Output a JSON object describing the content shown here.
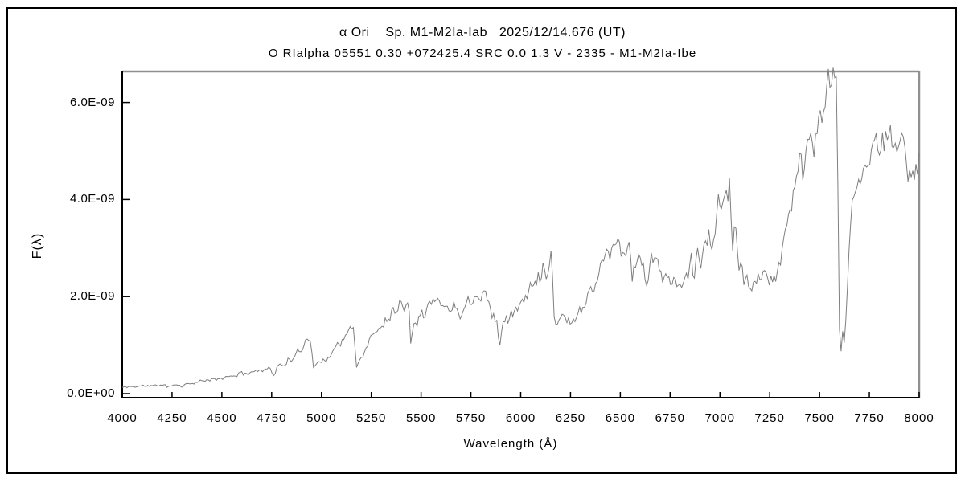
{
  "window": {
    "background": "#ffffff",
    "border_color": "#000000",
    "text_color": "#000000"
  },
  "chart_data": {
    "type": "line",
    "title": "α Ori    Sp. M1-M2Ia-Iab   2025/12/14.676 (UT)",
    "subtitle": "O RIalpha 05551 0.30 +072425.4 SRC 0.0 1.3 V - 2335 - M1-M2Ia-Ibe",
    "xlabel": "Wavelength (Å)",
    "ylabel": "F(λ)",
    "xlim": [
      4000,
      8000
    ],
    "ylim_e9": [
      -0.1,
      6.65
    ],
    "grid": false,
    "legend": "none",
    "x_ticks": [
      4000,
      4250,
      4500,
      4750,
      5000,
      5250,
      5500,
      5750,
      6000,
      6250,
      6500,
      6750,
      7000,
      7250,
      7500,
      7750,
      8000
    ],
    "y_ticks": [
      {
        "value_e9": 0.0,
        "label": "0.0E+00"
      },
      {
        "value_e9": 2.0,
        "label": "2.0E-09"
      },
      {
        "value_e9": 4.0,
        "label": "4.0E-09"
      },
      {
        "value_e9": 6.0,
        "label": "6.0E-09"
      }
    ],
    "colors": {
      "trace": "#7f7f7f",
      "axis": "#000000",
      "frame": "#909090"
    },
    "series": [
      {
        "name": "alpha-ori-optical-spectrum",
        "flux_scale": "1E-09",
        "anchors_e9": [
          [
            4000,
            0.13
          ],
          [
            4060,
            0.15
          ],
          [
            4120,
            0.16
          ],
          [
            4180,
            0.17
          ],
          [
            4220,
            0.19
          ],
          [
            4227,
            0.09
          ],
          [
            4235,
            0.16
          ],
          [
            4280,
            0.19
          ],
          [
            4305,
            0.13
          ],
          [
            4320,
            0.2
          ],
          [
            4380,
            0.24
          ],
          [
            4440,
            0.28
          ],
          [
            4500,
            0.32
          ],
          [
            4560,
            0.37
          ],
          [
            4620,
            0.43
          ],
          [
            4680,
            0.48
          ],
          [
            4740,
            0.52
          ],
          [
            4762,
            0.4
          ],
          [
            4780,
            0.55
          ],
          [
            4820,
            0.62
          ],
          [
            4860,
            0.72
          ],
          [
            4900,
            0.95
          ],
          [
            4930,
            1.1
          ],
          [
            4948,
            1.15
          ],
          [
            4957,
            0.56
          ],
          [
            4980,
            0.62
          ],
          [
            5020,
            0.72
          ],
          [
            5060,
            0.88
          ],
          [
            5110,
            1.12
          ],
          [
            5150,
            1.32
          ],
          [
            5164,
            1.45
          ],
          [
            5172,
            0.52
          ],
          [
            5185,
            0.62
          ],
          [
            5220,
            0.92
          ],
          [
            5260,
            1.18
          ],
          [
            5300,
            1.42
          ],
          [
            5340,
            1.65
          ],
          [
            5380,
            1.75
          ],
          [
            5420,
            1.85
          ],
          [
            5438,
            2.0
          ],
          [
            5448,
            1.06
          ],
          [
            5460,
            1.5
          ],
          [
            5500,
            1.68
          ],
          [
            5540,
            1.82
          ],
          [
            5580,
            1.9
          ],
          [
            5620,
            1.8
          ],
          [
            5660,
            1.72
          ],
          [
            5700,
            1.76
          ],
          [
            5750,
            1.9
          ],
          [
            5790,
            2.2
          ],
          [
            5810,
            2.1
          ],
          [
            5840,
            1.8
          ],
          [
            5860,
            1.62
          ],
          [
            5885,
            1.45
          ],
          [
            5895,
            1.03
          ],
          [
            5910,
            1.4
          ],
          [
            5940,
            1.55
          ],
          [
            5970,
            1.68
          ],
          [
            6000,
            1.85
          ],
          [
            6040,
            2.15
          ],
          [
            6080,
            2.45
          ],
          [
            6120,
            2.62
          ],
          [
            6150,
            2.72
          ],
          [
            6158,
            2.6
          ],
          [
            6166,
            1.58
          ],
          [
            6190,
            1.55
          ],
          [
            6220,
            1.6
          ],
          [
            6250,
            1.42
          ],
          [
            6280,
            1.62
          ],
          [
            6310,
            1.8
          ],
          [
            6340,
            2.1
          ],
          [
            6370,
            2.3
          ],
          [
            6400,
            2.55
          ],
          [
            6430,
            2.8
          ],
          [
            6460,
            3.0
          ],
          [
            6490,
            3.1
          ],
          [
            6520,
            3.05
          ],
          [
            6555,
            2.95
          ],
          [
            6563,
            2.12
          ],
          [
            6572,
            2.75
          ],
          [
            6590,
            2.85
          ],
          [
            6620,
            2.55
          ],
          [
            6631,
            2.15
          ],
          [
            6645,
            2.65
          ],
          [
            6670,
            2.7
          ],
          [
            6700,
            2.6
          ],
          [
            6730,
            2.4
          ],
          [
            6760,
            2.25
          ],
          [
            6790,
            2.1
          ],
          [
            6820,
            2.35
          ],
          [
            6845,
            2.5
          ],
          [
            6860,
            2.85
          ],
          [
            6868,
            2.1
          ],
          [
            6880,
            2.75
          ],
          [
            6900,
            2.9
          ],
          [
            6930,
            3.05
          ],
          [
            6960,
            3.25
          ],
          [
            6990,
            3.6
          ],
          [
            7020,
            4.0
          ],
          [
            7045,
            4.4
          ],
          [
            7052,
            4.45
          ],
          [
            7058,
            3.0
          ],
          [
            7070,
            3.2
          ],
          [
            7085,
            3.35
          ],
          [
            7092,
            2.6
          ],
          [
            7105,
            2.85
          ],
          [
            7118,
            2.5
          ],
          [
            7130,
            2.55
          ],
          [
            7145,
            2.28
          ],
          [
            7165,
            2.35
          ],
          [
            7185,
            2.45
          ],
          [
            7210,
            2.4
          ],
          [
            7235,
            2.3
          ],
          [
            7260,
            2.42
          ],
          [
            7285,
            2.55
          ],
          [
            7305,
            2.8
          ],
          [
            7325,
            3.3
          ],
          [
            7355,
            3.9
          ],
          [
            7385,
            4.4
          ],
          [
            7415,
            4.7
          ],
          [
            7445,
            5.05
          ],
          [
            7475,
            5.4
          ],
          [
            7505,
            5.7
          ],
          [
            7535,
            5.95
          ],
          [
            7560,
            6.2
          ],
          [
            7572,
            6.3
          ],
          [
            7585,
            6.05
          ],
          [
            7592,
            4.2
          ],
          [
            7597,
            1.6
          ],
          [
            7603,
            1.0
          ],
          [
            7608,
            0.85
          ],
          [
            7614,
            1.15
          ],
          [
            7619,
            1.45
          ],
          [
            7623,
            1.0
          ],
          [
            7629,
            1.85
          ],
          [
            7634,
            1.4
          ],
          [
            7641,
            2.2
          ],
          [
            7650,
            2.8
          ],
          [
            7658,
            3.45
          ],
          [
            7668,
            3.85
          ],
          [
            7680,
            4.1
          ],
          [
            7695,
            4.35
          ],
          [
            7710,
            4.5
          ],
          [
            7730,
            4.65
          ],
          [
            7755,
            4.9
          ],
          [
            7780,
            5.05
          ],
          [
            7805,
            5.2
          ],
          [
            7830,
            5.15
          ],
          [
            7855,
            5.3
          ],
          [
            7878,
            5.5
          ],
          [
            7895,
            5.25
          ],
          [
            7915,
            4.95
          ],
          [
            7932,
            4.8
          ],
          [
            7948,
            4.4
          ],
          [
            7962,
            4.55
          ],
          [
            7980,
            4.65
          ],
          [
            8000,
            4.85
          ]
        ],
        "noise": {
          "seed": 11,
          "step_angstrom": 8,
          "relative_jitter": 0.05,
          "relative_smooth": 0.1,
          "absolute_e9": 0.012
        }
      }
    ]
  }
}
